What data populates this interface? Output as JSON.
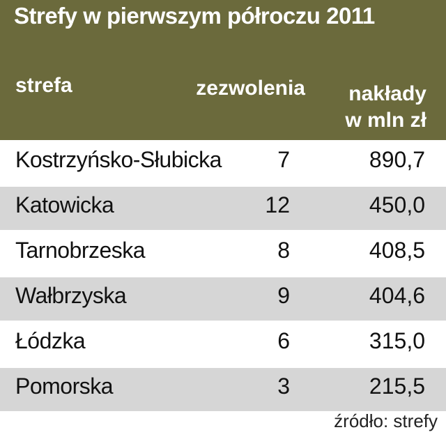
{
  "chart_data": {
    "type": "table",
    "title": "Strefy w pierwszym półroczu 2011",
    "columns": [
      "strefa",
      "zezwolenia",
      "nakłady",
      "w mln zł"
    ],
    "rows": [
      {
        "strefa": "Kostrzyńsko-Słubicka",
        "zezwolenia": "7",
        "naklady": "890,7"
      },
      {
        "strefa": "Katowicka",
        "zezwolenia": "12",
        "naklady": "450,0"
      },
      {
        "strefa": "Tarnobrzeska",
        "zezwolenia": "8",
        "naklady": "408,5"
      },
      {
        "strefa": "Wałbrzyska",
        "zezwolenia": "9",
        "naklady": "404,6"
      },
      {
        "strefa": "Łódzka",
        "zezwolenia": "6",
        "naklady": "315,0"
      },
      {
        "strefa": "Pomorska",
        "zezwolenia": "3",
        "naklady": "215,5"
      }
    ],
    "source": "źródło: strefy"
  },
  "colors": {
    "header_bg": "#6b6a3c",
    "shaded_row": "#d6d6d6"
  }
}
